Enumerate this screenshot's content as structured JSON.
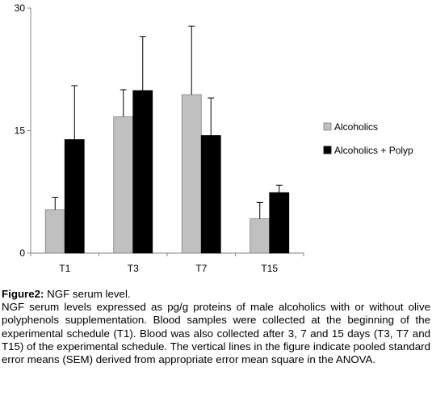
{
  "chart_data": {
    "type": "bar",
    "categories": [
      "T1",
      "T3",
      "T7",
      "T15"
    ],
    "series": [
      {
        "name": "Alcoholics",
        "values": [
          5.3,
          16.7,
          19.4,
          4.2
        ],
        "errors": [
          1.5,
          3.3,
          8.4,
          2.0
        ],
        "color": "#c0c0c0"
      },
      {
        "name": "Alcoholics + Polyp",
        "values": [
          13.9,
          19.9,
          14.4,
          7.4
        ],
        "errors": [
          6.6,
          6.6,
          4.6,
          0.9
        ],
        "color": "#000000"
      }
    ],
    "yticks": [
      0,
      15,
      30
    ],
    "ylim": [
      0,
      30
    ],
    "legend_position": "right",
    "grid": false
  },
  "caption": {
    "label": "Figure2:",
    "title": " NGF serum level.",
    "body": "NGF serum levels expressed as pg/g proteins of male alcoholics with or without olive polyphenols supplementation. Blood samples were collected at the beginning of the experimental schedule (T1). Blood was also collected after 3, 7 and 15 days (T3, T7 and T15) of the experimental schedule. The vertical lines in the figure indicate pooled standard error means (SEM) derived from appropriate error mean square in the ANOVA."
  }
}
